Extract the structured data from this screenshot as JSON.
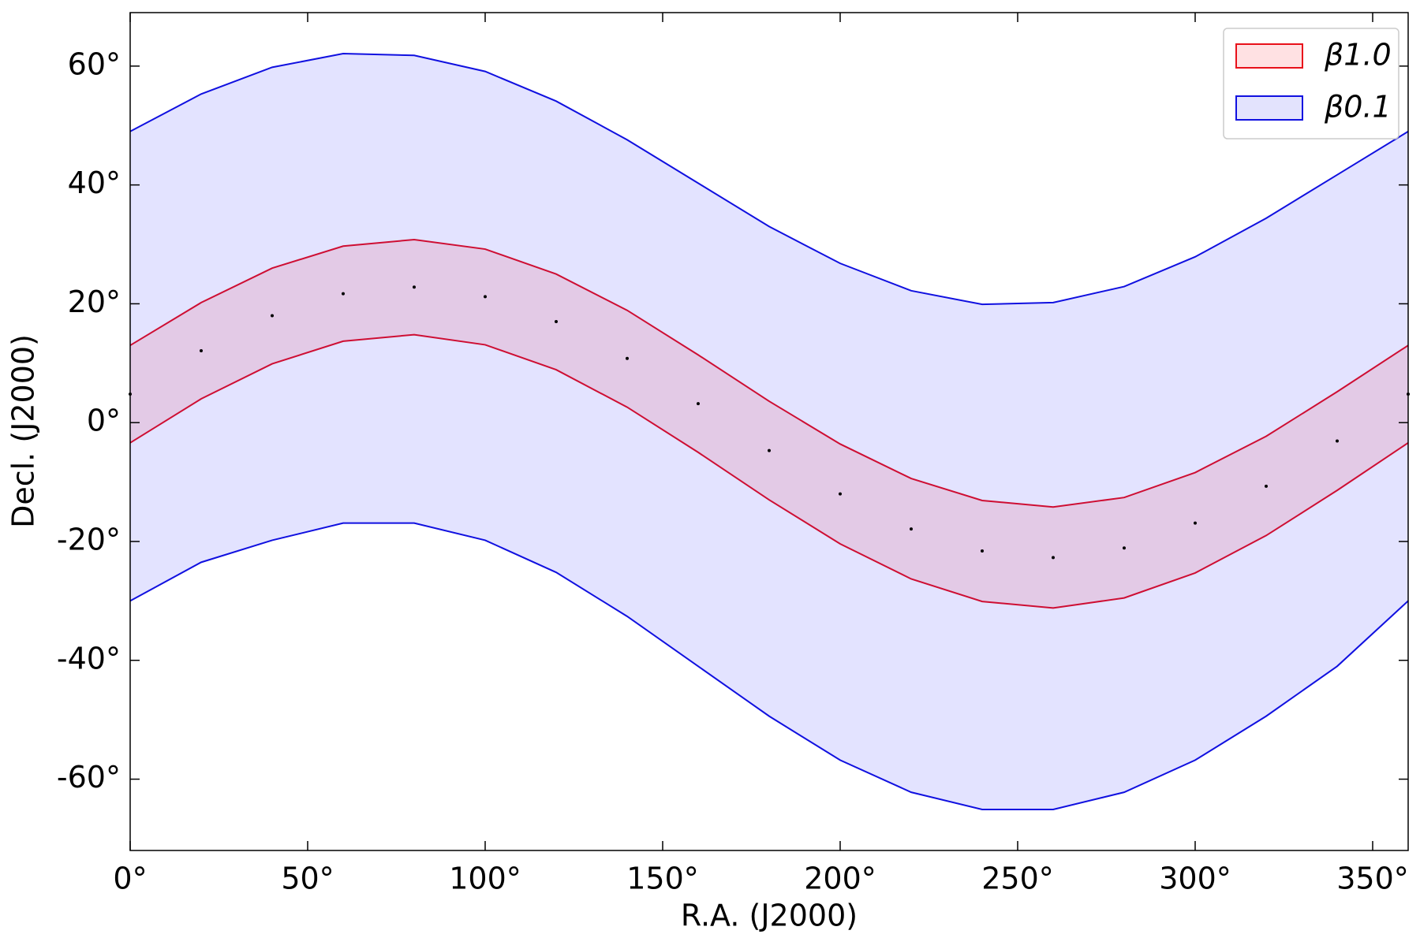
{
  "chart_data": {
    "type": "band",
    "xlabel": "R.A. (J2000)",
    "ylabel": "Decl. (J2000)",
    "x": [
      0,
      20,
      40,
      60,
      80,
      100,
      120,
      140,
      160,
      180,
      200,
      220,
      240,
      260,
      280,
      300,
      320,
      340,
      360
    ],
    "series": [
      {
        "name": "β1.0",
        "color": "#e8101a",
        "fill": "rgba(255,0,0,0.11)",
        "legend_fill": "#ffe1e3",
        "upper": [
          13.0,
          20.2,
          26.0,
          29.7,
          30.8,
          29.2,
          25.0,
          18.9,
          11.4,
          3.6,
          -3.6,
          -9.4,
          -13.1,
          -14.2,
          -12.6,
          -8.4,
          -2.3,
          5.2,
          13.0
        ],
        "lower": [
          -3.4,
          4.0,
          9.9,
          13.7,
          14.8,
          13.1,
          8.9,
          2.6,
          -5.0,
          -13.0,
          -20.4,
          -26.3,
          -30.1,
          -31.2,
          -29.5,
          -25.3,
          -19.0,
          -11.4,
          -3.4
        ]
      },
      {
        "name": "β0.1",
        "color": "#1010e0",
        "fill": "rgba(0,0,255,0.11)",
        "legend_fill": "#e3e3fd",
        "upper": [
          49.0,
          55.3,
          59.8,
          62.1,
          61.8,
          59.1,
          54.1,
          47.6,
          40.3,
          33.0,
          26.8,
          22.2,
          19.9,
          20.2,
          22.9,
          27.9,
          34.4,
          41.7,
          49.0
        ],
        "lower": [
          -30.0,
          -23.5,
          -19.8,
          -16.9,
          -16.9,
          -19.8,
          -25.2,
          -32.6,
          -41.0,
          -49.4,
          -56.8,
          -62.2,
          -65.1,
          -65.1,
          -62.2,
          -56.8,
          -49.4,
          -41.0,
          -30.0
        ]
      }
    ],
    "points": {
      "color": "#000000",
      "x": [
        0,
        20,
        40,
        60,
        80,
        100,
        120,
        140,
        160,
        180,
        200,
        220,
        240,
        260,
        280,
        300,
        320,
        340,
        360
      ],
      "y": [
        4.8,
        12.1,
        18.0,
        21.7,
        22.8,
        21.2,
        17.0,
        10.8,
        3.2,
        -4.7,
        -12.0,
        -17.9,
        -21.6,
        -22.7,
        -21.1,
        -16.9,
        -10.7,
        -3.1,
        4.8
      ]
    },
    "xlim": [
      0,
      360
    ],
    "ylim": [
      -72,
      69
    ],
    "xticks": [
      {
        "value": 0,
        "label": "0°"
      },
      {
        "value": 50,
        "label": "50°"
      },
      {
        "value": 100,
        "label": "100°"
      },
      {
        "value": 150,
        "label": "150°"
      },
      {
        "value": 200,
        "label": "200°"
      },
      {
        "value": 250,
        "label": "250°"
      },
      {
        "value": 300,
        "label": "300°"
      },
      {
        "value": 350,
        "label": "350°"
      }
    ],
    "yticks": [
      {
        "value": -60,
        "label": "-60°"
      },
      {
        "value": -40,
        "label": "-40°"
      },
      {
        "value": -20,
        "label": "-20°"
      },
      {
        "value": 0,
        "label": "0°"
      },
      {
        "value": 20,
        "label": "20°"
      },
      {
        "value": 40,
        "label": "40°"
      },
      {
        "value": 60,
        "label": "60°"
      }
    ],
    "legend": "upper right",
    "grid": false
  }
}
